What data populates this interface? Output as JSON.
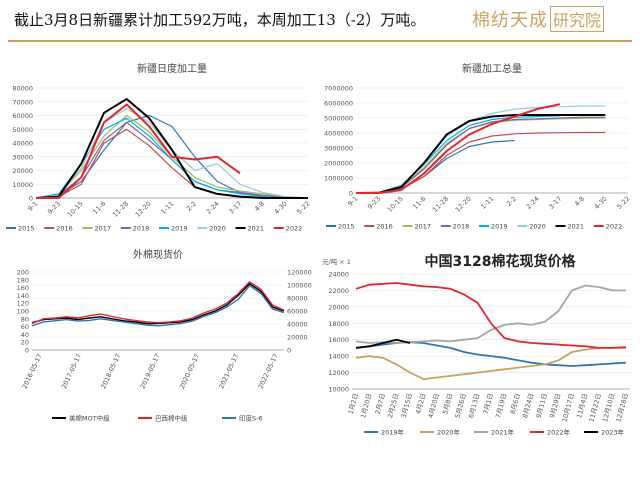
{
  "header": {
    "title": "截止3月8日新疆累计加工592万吨，本周加工13（-2）万吨。",
    "logo_text": "棉纺天成",
    "logo_box": "研究院"
  },
  "colors": {
    "s2015": "#2e75b6",
    "s2016": "#c0504d",
    "s2017": "#9bbb59",
    "s2018": "#8064a2",
    "s2019": "#00b0f0",
    "s2020": "#92cddc",
    "s2021": "#000000",
    "s2022": "#e3262b",
    "gold": "#c9a35b"
  },
  "chart_data": [
    {
      "id": "daily",
      "type": "line",
      "title": "新疆日度加工量",
      "ylim": [
        0,
        80000
      ],
      "y_ticks": [
        "0",
        "10000",
        "20000",
        "30000",
        "40000",
        "50000",
        "60000",
        "70000",
        "80000"
      ],
      "x_ticks": [
        "9-1",
        "9-23",
        "10-15",
        "11-6",
        "11-28",
        "12-20",
        "1-11",
        "2-2",
        "2-24",
        "3-17",
        "4-8",
        "4-30",
        "5-22"
      ],
      "series": [
        {
          "name": "2015",
          "color_key": "s2015",
          "values": [
            0,
            2000,
            12000,
            35000,
            55000,
            60000,
            52000,
            30000,
            12000,
            4000,
            1000,
            0,
            0
          ]
        },
        {
          "name": "2016",
          "color_key": "s2016",
          "values": [
            0,
            1000,
            10000,
            40000,
            50000,
            38000,
            22000,
            8000,
            3000,
            1000,
            0,
            0,
            0
          ]
        },
        {
          "name": "2017",
          "color_key": "s2017",
          "values": [
            0,
            3000,
            20000,
            45000,
            60000,
            48000,
            30000,
            15000,
            8000,
            5000,
            3000,
            1000,
            0
          ]
        },
        {
          "name": "2018",
          "color_key": "s2018",
          "values": [
            0,
            2000,
            15000,
            42000,
            55000,
            42000,
            28000,
            12000,
            6000,
            4000,
            2000,
            500,
            0
          ]
        },
        {
          "name": "2019",
          "color_key": "s2019",
          "values": [
            0,
            3000,
            25000,
            50000,
            58000,
            45000,
            28000,
            12000,
            6000,
            3000,
            1000,
            0,
            0
          ]
        },
        {
          "name": "2020",
          "color_key": "s2020",
          "values": [
            0,
            2000,
            22000,
            55000,
            65000,
            55000,
            35000,
            20000,
            25000,
            10000,
            4000,
            1000,
            0
          ]
        },
        {
          "name": "2021",
          "color_key": "s2021",
          "values": [
            0,
            1000,
            25000,
            62000,
            72000,
            58000,
            35000,
            8000,
            3000,
            1000,
            0,
            0,
            0
          ]
        },
        {
          "name": "2022",
          "color_key": "s2022",
          "values": [
            0,
            0,
            15000,
            55000,
            68000,
            52000,
            30000,
            28000,
            30000,
            18000,
            null,
            null,
            null
          ]
        }
      ]
    },
    {
      "id": "cumulative",
      "type": "line",
      "title": "新疆加工总量",
      "ylim": [
        0,
        7000000
      ],
      "y_ticks": [
        "0",
        "1000000",
        "2000000",
        "3000000",
        "4000000",
        "5000000",
        "6000000",
        "7000000"
      ],
      "x_ticks": [
        "9-1",
        "9-23",
        "10-15",
        "11-6",
        "11-28",
        "12-20",
        "1-11",
        "2-2",
        "2-24",
        "3-17",
        "4-8",
        "4-30",
        "5-22"
      ],
      "series": [
        {
          "name": "2015",
          "color_key": "s2015",
          "values": [
            0,
            20000,
            300000,
            1100000,
            2300000,
            3100000,
            3400000,
            3500000,
            null,
            null,
            null,
            null,
            null
          ]
        },
        {
          "name": "2016",
          "color_key": "s2016",
          "values": [
            0,
            10000,
            250000,
            1100000,
            2500000,
            3400000,
            3800000,
            3950000,
            4000000,
            4020000,
            4030000,
            4030000,
            null
          ]
        },
        {
          "name": "2017",
          "color_key": "s2017",
          "values": [
            0,
            20000,
            400000,
            1700000,
            3300000,
            4300000,
            4700000,
            4850000,
            4900000,
            4950000,
            4980000,
            5000000,
            null
          ]
        },
        {
          "name": "2018",
          "color_key": "s2018",
          "values": [
            0,
            20000,
            350000,
            1600000,
            3200000,
            4300000,
            4750000,
            4900000,
            4950000,
            5000000,
            5050000,
            5050000,
            null
          ]
        },
        {
          "name": "2019",
          "color_key": "s2019",
          "values": [
            0,
            30000,
            500000,
            1900000,
            3500000,
            4500000,
            4900000,
            5050000,
            5100000,
            5150000,
            null,
            null,
            null
          ]
        },
        {
          "name": "2020",
          "color_key": "s2020",
          "values": [
            0,
            20000,
            450000,
            2000000,
            3800000,
            4800000,
            5300000,
            5600000,
            5700000,
            5750000,
            5800000,
            5800000,
            null
          ]
        },
        {
          "name": "2021",
          "color_key": "s2021",
          "values": [
            0,
            10000,
            400000,
            2000000,
            3900000,
            4800000,
            5100000,
            5200000,
            5200000,
            5200000,
            5200000,
            5200000,
            null
          ]
        },
        {
          "name": "2022",
          "color_key": "s2022",
          "values": [
            0,
            0,
            200000,
            1300000,
            2800000,
            3900000,
            4600000,
            5100000,
            5600000,
            5920000,
            null,
            null,
            null
          ]
        }
      ]
    },
    {
      "id": "foreign",
      "type": "line",
      "title": "外棉现货价",
      "ylim_left": [
        0,
        200
      ],
      "ylim_right": [
        0,
        120000
      ],
      "y_ticks_left": [
        "0",
        "20",
        "40",
        "60",
        "80",
        "100",
        "120",
        "140",
        "160",
        "180",
        "200"
      ],
      "y_ticks_right": [
        "0",
        "20000",
        "40000",
        "60000",
        "80000",
        "100000",
        "120000"
      ],
      "x_ticks": [
        "2016-05-17",
        "2017-05-17",
        "2018-05-17",
        "2019-05-17",
        "2020-05-17",
        "2021-05-17",
        "2022-05-17"
      ],
      "legend": [
        "美棉MOT中级",
        "巴西棉中级",
        "印度S-6"
      ],
      "series": [
        {
          "name": "美棉MOT中级",
          "color_key": "s2021",
          "axis": "left",
          "values": [
            70,
            78,
            80,
            82,
            78,
            82,
            85,
            80,
            75,
            72,
            68,
            68,
            70,
            72,
            78,
            90,
            100,
            115,
            140,
            170,
            150,
            110,
            100
          ]
        },
        {
          "name": "巴西棉中级",
          "color_key": "s2022",
          "axis": "left",
          "values": [
            68,
            80,
            82,
            85,
            82,
            88,
            92,
            86,
            80,
            76,
            72,
            70,
            72,
            75,
            82,
            95,
            105,
            120,
            145,
            175,
            155,
            115,
            102
          ]
        },
        {
          "name": "印度S-6",
          "color_key": "s2015",
          "axis": "left",
          "values": [
            62,
            72,
            75,
            78,
            74,
            76,
            80,
            76,
            72,
            68,
            64,
            62,
            65,
            68,
            74,
            86,
            96,
            110,
            130,
            165,
            145,
            105,
            96
          ]
        }
      ]
    },
    {
      "id": "china3128",
      "type": "line",
      "title": "中国3128棉花现货价格",
      "unit": "元/吨 × 1",
      "ylim": [
        10000,
        24000
      ],
      "y_ticks": [
        "10000",
        "12000",
        "14000",
        "16000",
        "18000",
        "20000",
        "22000",
        "24000"
      ],
      "x_ticks": [
        "1月2日",
        "1月20日",
        "2月7日",
        "2月25日",
        "3月15日",
        "4月2日",
        "4月20日",
        "5月8日",
        "5月26日",
        "6月13日",
        "7月1日",
        "7月19日",
        "8月6日",
        "8月24日",
        "9月11日",
        "9月29日",
        "10月17日",
        "11月4日",
        "11月22日",
        "12月10日",
        "12月28日"
      ],
      "series": [
        {
          "name": "2019年",
          "color_key": "s2015",
          "values": [
            15000,
            15200,
            15400,
            15600,
            15700,
            15600,
            15300,
            15000,
            14500,
            14200,
            14000,
            13800,
            13500,
            13200,
            13000,
            12900,
            12800,
            12900,
            13000,
            13100,
            13200
          ]
        },
        {
          "name": "2020年",
          "color_key": "gold",
          "values": [
            13800,
            14000,
            13800,
            13000,
            12000,
            11200,
            11400,
            11600,
            11800,
            12000,
            12200,
            12400,
            12600,
            12800,
            13000,
            13500,
            14500,
            14800,
            15000,
            15000,
            15000
          ]
        },
        {
          "name": "2021年",
          "color_key": "gray",
          "values": [
            15800,
            15600,
            15700,
            15600,
            15700,
            15800,
            15900,
            15800,
            16000,
            16200,
            17200,
            17800,
            18000,
            17800,
            18200,
            19500,
            22000,
            22600,
            22400,
            22000,
            22000
          ]
        },
        {
          "name": "2022年",
          "color_key": "s2022",
          "values": [
            22200,
            22700,
            22800,
            22900,
            22700,
            22500,
            22400,
            22200,
            21500,
            20500,
            18000,
            16200,
            15800,
            15600,
            15500,
            15400,
            15300,
            15200,
            15000,
            15000,
            15100
          ]
        },
        {
          "name": "2023年",
          "color_key": "s2021",
          "values": [
            15000,
            15200,
            15600,
            16000,
            15600,
            null,
            null,
            null,
            null,
            null,
            null,
            null,
            null,
            null,
            null,
            null,
            null,
            null,
            null,
            null,
            null
          ]
        }
      ]
    }
  ]
}
